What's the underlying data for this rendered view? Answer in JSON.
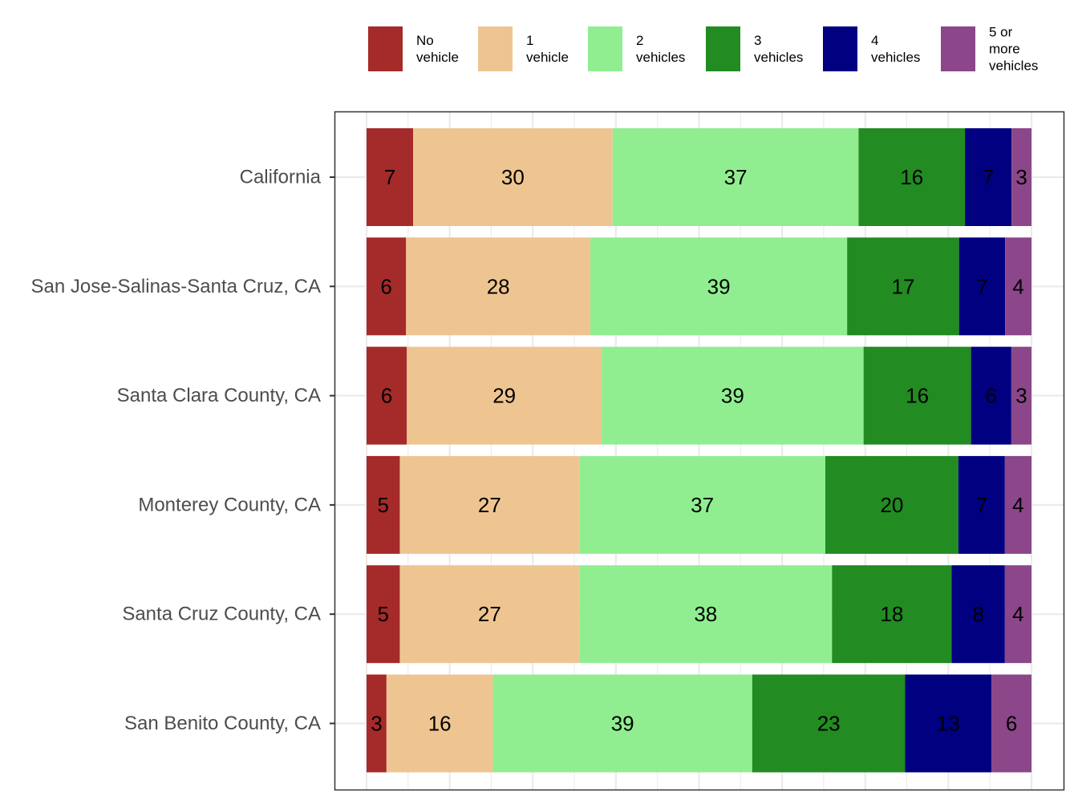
{
  "chart_data": {
    "type": "bar",
    "orientation": "horizontal",
    "stacked": true,
    "categories": [
      "California",
      "San Jose-Salinas-Santa Cruz, CA",
      "Santa Clara County, CA",
      "Monterey County, CA",
      "Santa Cruz County, CA",
      "San Benito County, CA"
    ],
    "series": [
      {
        "name_lines": [
          "No",
          "vehicle"
        ],
        "color": "#a52a2a",
        "values": [
          7,
          6,
          6,
          5,
          5,
          3
        ]
      },
      {
        "name_lines": [
          "1",
          "vehicle"
        ],
        "color": "#eec591",
        "values": [
          30,
          28,
          29,
          27,
          27,
          16
        ]
      },
      {
        "name_lines": [
          "2",
          "vehicles"
        ],
        "color": "#90ee90",
        "values": [
          37,
          39,
          39,
          37,
          38,
          39
        ]
      },
      {
        "name_lines": [
          "3",
          "vehicles"
        ],
        "color": "#228b22",
        "values": [
          16,
          17,
          16,
          20,
          18,
          23
        ]
      },
      {
        "name_lines": [
          "4",
          "vehicles"
        ],
        "color": "#000080",
        "values": [
          7,
          7,
          6,
          7,
          8,
          13
        ]
      },
      {
        "name_lines": [
          "5 or",
          "more",
          "vehicles"
        ],
        "color": "#8b4789",
        "values": [
          3,
          4,
          3,
          4,
          4,
          6
        ]
      }
    ],
    "xlim": [
      0,
      100
    ],
    "grid": true,
    "legend_position": "top"
  }
}
